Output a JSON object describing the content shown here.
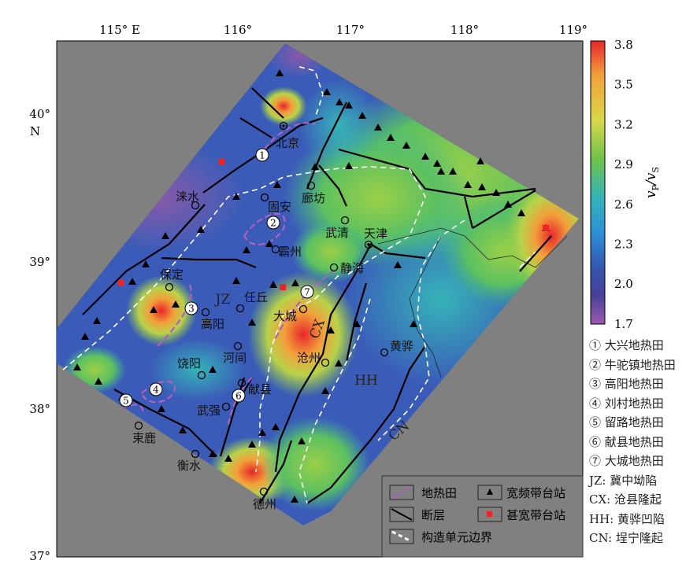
{
  "axes": {
    "lon_ticks": [
      "115° E",
      "116°",
      "117°",
      "118°",
      "119°"
    ],
    "lat_ticks": [
      "40°",
      "39°",
      "38°",
      "37°"
    ],
    "lat_unit": "N"
  },
  "colorbar": {
    "label": "vP/vS",
    "label_main": "v",
    "sub1": "P",
    "slash": "/v",
    "sub2": "S",
    "ticks": [
      "3.8",
      "3.5",
      "3.2",
      "2.9",
      "2.6",
      "2.3",
      "2.0",
      "1.7"
    ],
    "colors": [
      "#e8262a",
      "#f2a03a",
      "#e6d64a",
      "#8ccb47",
      "#4dbb52",
      "#36b4b8",
      "#2c8fd6",
      "#3456b0",
      "#4a3f9a",
      "#8a5aa8"
    ]
  },
  "cities": [
    "北京",
    "廊坊",
    "固安",
    "涞水",
    "武清",
    "天津",
    "霸州",
    "静海",
    "保定",
    "任丘",
    "大城",
    "高阳",
    "河间",
    "沧州",
    "黄骅",
    "饶阳",
    "献县",
    "武强",
    "束鹿",
    "衡水",
    "德州"
  ],
  "units": [
    "JZ",
    "CX",
    "HH",
    "CN"
  ],
  "fields": [
    "1",
    "2",
    "3",
    "4",
    "5",
    "6",
    "7"
  ],
  "map_legend": {
    "geothermal": "地热田",
    "station_bb": "宽频带台站",
    "fault": "断层",
    "station_vbb": "甚宽带台站",
    "boundary": "构造单元边界"
  },
  "right_legend": [
    "① 大兴地热田",
    "② 牛驼镇地热田",
    "③ 高阳地热田",
    "④ 刘村地热田",
    "⑤ 留路地热田",
    "⑥ 献县地热田",
    "⑦ 大城地热田",
    "JZ: 冀中坳陷",
    "CX: 沧县隆起",
    "HH: 黄骅凹陷",
    "CN: 埕宁隆起"
  ]
}
